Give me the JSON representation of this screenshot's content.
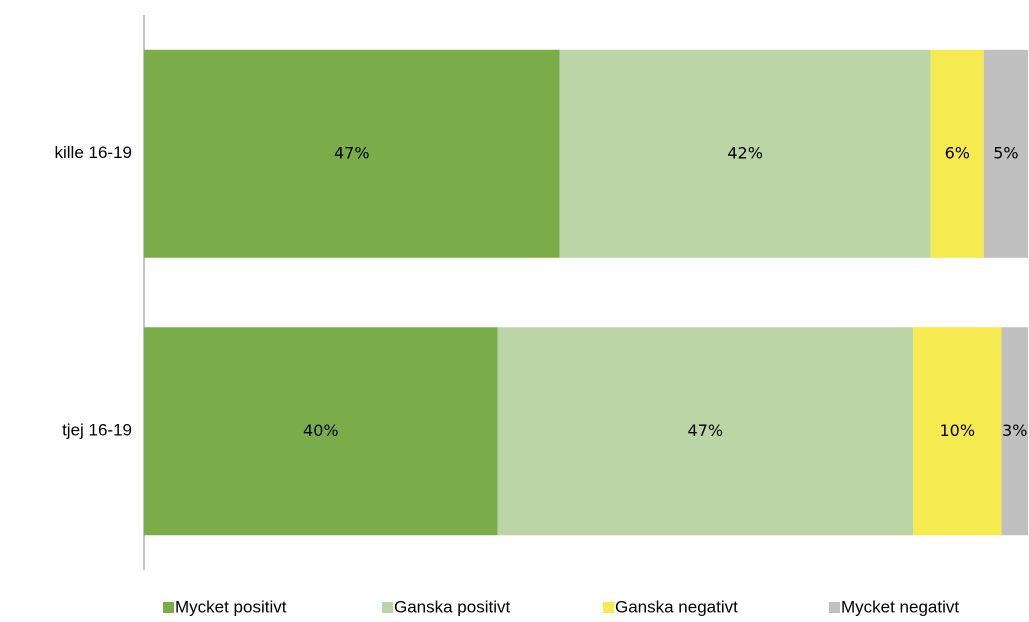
{
  "chart_data": {
    "type": "stacked-bar-horizontal",
    "categories": [
      "kille 16-19",
      "tjej 16-19"
    ],
    "series": [
      {
        "name": "Mycket positivt",
        "color": "#7aad4a",
        "values": [
          47,
          40
        ],
        "value_labels": [
          "47%",
          "40%"
        ]
      },
      {
        "name": "Ganska positivt",
        "color": "#bcd5a6",
        "values": [
          42,
          47
        ],
        "value_labels": [
          "42%",
          "47%"
        ]
      },
      {
        "name": "Ganska negativt",
        "color": "#f5ea4f",
        "values": [
          6,
          10
        ],
        "value_labels": [
          "6%",
          "10%"
        ]
      },
      {
        "name": "Mycket negativt",
        "color": "#c0c0c0",
        "values": [
          5,
          3
        ],
        "value_labels": [
          "5%",
          "3%"
        ]
      }
    ],
    "legend": "bottom"
  }
}
